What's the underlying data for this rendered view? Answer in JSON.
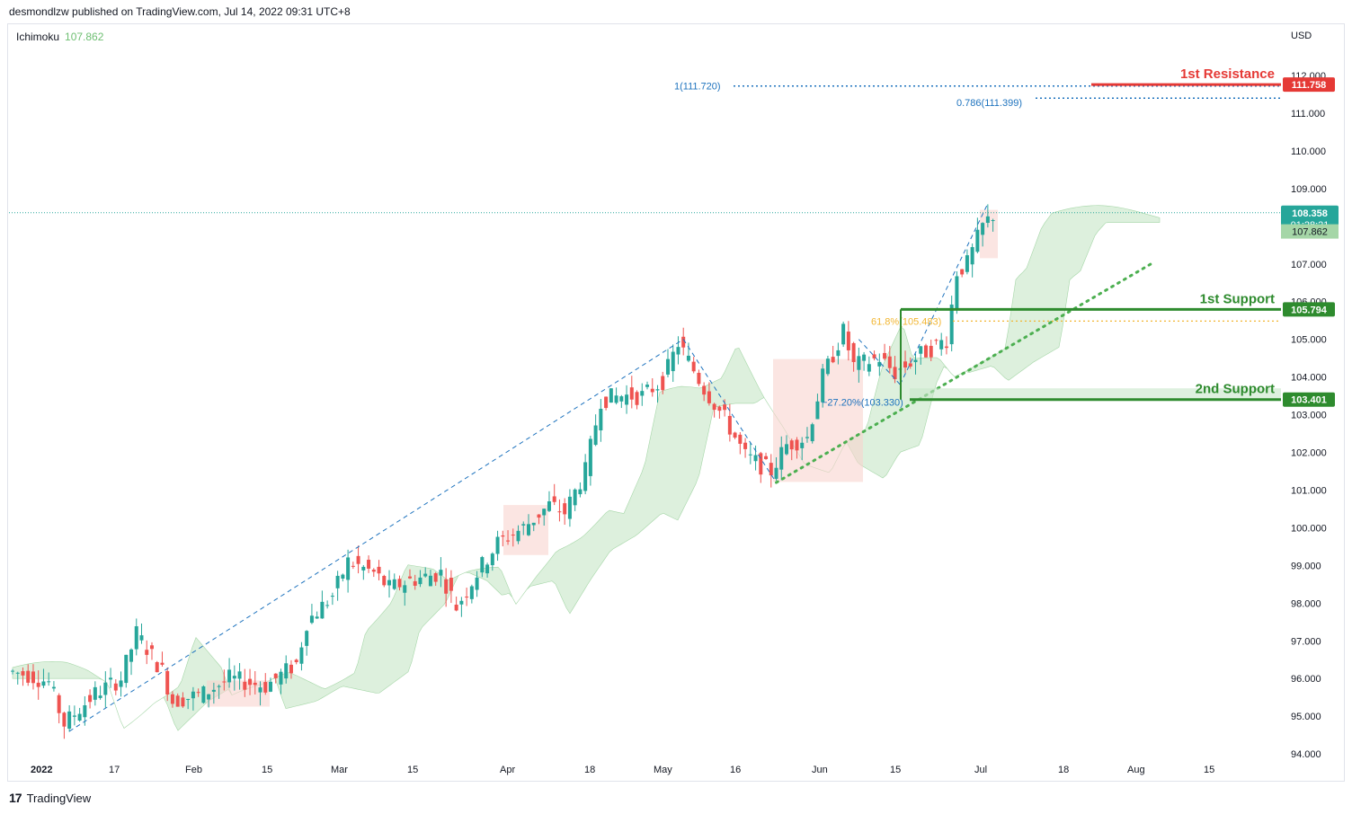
{
  "header": {
    "publisher": "desmondlzw published on TradingView.com, Jul 14, 2022 09:31 UTC+8"
  },
  "indicator": {
    "name": "Ichimoku",
    "value": "107.862"
  },
  "axis": {
    "currency": "USD"
  },
  "footer": {
    "brand": "TradingView"
  },
  "colors": {
    "up": "#26a69a",
    "down": "#ef5350",
    "resistance": "#e53935",
    "support": "#2e8b2e",
    "fib": "#1e73be",
    "fib618": "#f2b632",
    "cloud_bull": "#cfe9cf",
    "cloud_bear": "#f8d3cf",
    "trend": "#4caf50",
    "last_price": "#26a69a"
  },
  "chart_data": {
    "type": "candlestick",
    "symbol_currency": "USD",
    "ylim": [
      94.0,
      112.5
    ],
    "y_ticks": [
      "112.000",
      "111.000",
      "110.000",
      "109.000",
      "108.000",
      "107.000",
      "106.000",
      "105.000",
      "104.000",
      "103.000",
      "102.000",
      "101.000",
      "100.000",
      "99.000",
      "98.000",
      "97.000",
      "96.000",
      "95.000",
      "94.000"
    ],
    "x_ticks": [
      "2022",
      "17",
      "Feb",
      "15",
      "Mar",
      "15",
      "Apr",
      "18",
      "May",
      "16",
      "Jun",
      "15",
      "Jul",
      "18",
      "Aug",
      "15"
    ],
    "price_path": [
      [
        "2022-01-03",
        96.2
      ],
      [
        "2022-01-07",
        96.1
      ],
      [
        "2022-01-11",
        95.9
      ],
      [
        "2022-01-14",
        94.8
      ],
      [
        "2022-01-20",
        95.6
      ],
      [
        "2022-01-25",
        96.0
      ],
      [
        "2022-01-28",
        97.2
      ],
      [
        "2022-02-02",
        96.2
      ],
      [
        "2022-02-04",
        95.4
      ],
      [
        "2022-02-10",
        95.6
      ],
      [
        "2022-02-15",
        96.0
      ],
      [
        "2022-02-22",
        95.8
      ],
      [
        "2022-02-28",
        96.4
      ],
      [
        "2022-03-02",
        97.5
      ],
      [
        "2022-03-07",
        98.2
      ],
      [
        "2022-03-10",
        99.1
      ],
      [
        "2022-03-15",
        98.8
      ],
      [
        "2022-03-18",
        98.4
      ],
      [
        "2022-03-22",
        98.6
      ],
      [
        "2022-03-28",
        98.8
      ],
      [
        "2022-03-31",
        97.9
      ],
      [
        "2022-04-04",
        98.8
      ],
      [
        "2022-04-08",
        99.6
      ],
      [
        "2022-04-13",
        100.0
      ],
      [
        "2022-04-18",
        100.6
      ],
      [
        "2022-04-21",
        100.4
      ],
      [
        "2022-04-25",
        101.5
      ],
      [
        "2022-04-28",
        103.4
      ],
      [
        "2022-05-02",
        103.5
      ],
      [
        "2022-05-06",
        103.5
      ],
      [
        "2022-05-10",
        103.9
      ],
      [
        "2022-05-13",
        104.9
      ],
      [
        "2022-05-18",
        103.7
      ],
      [
        "2022-05-22",
        102.9
      ],
      [
        "2022-05-26",
        101.9
      ],
      [
        "2022-05-31",
        101.5
      ],
      [
        "2022-06-03",
        102.2
      ],
      [
        "2022-06-07",
        102.4
      ],
      [
        "2022-06-10",
        104.0
      ],
      [
        "2022-06-14",
        105.2
      ],
      [
        "2022-06-16",
        104.3
      ],
      [
        "2022-06-21",
        104.5
      ],
      [
        "2022-06-24",
        104.1
      ],
      [
        "2022-06-29",
        104.6
      ],
      [
        "2022-07-04",
        105.0
      ],
      [
        "2022-07-06",
        106.8
      ],
      [
        "2022-07-08",
        107.0
      ],
      [
        "2022-07-11",
        108.0
      ],
      [
        "2022-07-13",
        108.3
      ]
    ],
    "last_price": "108.358",
    "countdown": "01:28:21",
    "ichimoku_value": "107.862",
    "levels": [
      {
        "name": "1st Resistance",
        "value": 111.758,
        "label": "111.758",
        "kind": "resistance"
      },
      {
        "name": "1st Support",
        "value": 105.794,
        "label": "105.794",
        "kind": "support"
      },
      {
        "name": "2nd Support",
        "value": 103.401,
        "label": "103.401",
        "kind": "support"
      }
    ],
    "fib_labels": [
      {
        "text": "1(111.720)",
        "value": 111.72
      },
      {
        "text": "0.786(111.399)",
        "value": 111.399
      },
      {
        "text": "61.8%(105.483)",
        "value": 105.483
      },
      {
        "text": "−27.20%(103.330)",
        "value": 103.33
      }
    ],
    "grid": false
  }
}
